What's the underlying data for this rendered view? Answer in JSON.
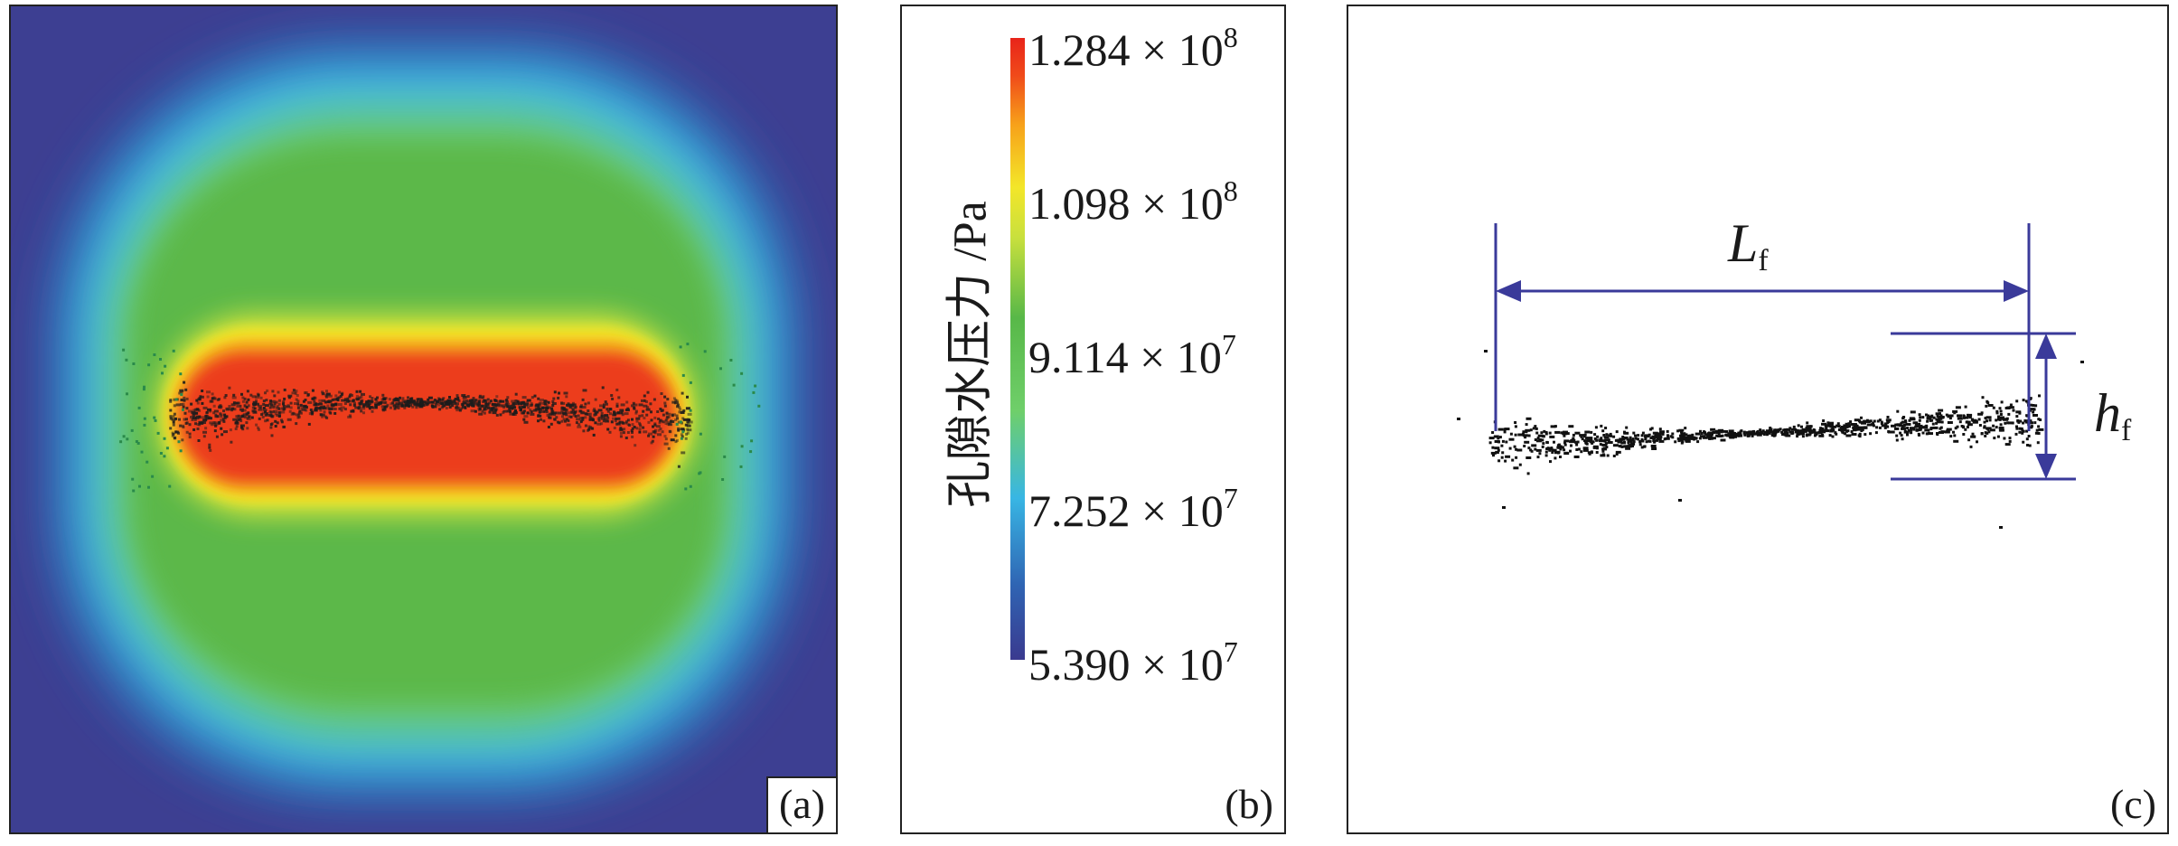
{
  "panels": {
    "a": {
      "tag": "(a)"
    },
    "b": {
      "tag": "(b)"
    },
    "c": {
      "tag": "(c)"
    }
  },
  "colorbar": {
    "title": "孔隙水压力 /Pa",
    "ticks": [
      {
        "mantissa": "1.284 × 10",
        "exponent": "8"
      },
      {
        "mantissa": "1.098 × 10",
        "exponent": "8"
      },
      {
        "mantissa": "9.114 × 10",
        "exponent": "7"
      },
      {
        "mantissa": "7.252 × 10",
        "exponent": "7"
      },
      {
        "mantissa": "5.390 × 10",
        "exponent": "7"
      }
    ],
    "colors": {
      "max": "#e8241a",
      "high": "#f3e629",
      "mid": "#58b848",
      "low": "#38b6e4",
      "min": "#3a3a8f"
    }
  },
  "dimension_labels": {
    "length": {
      "symbol": "L",
      "subscript": "f"
    },
    "height": {
      "symbol": "h",
      "subscript": "f"
    }
  },
  "colors": {
    "dimension_line": "#3a3a9a",
    "fracture": "#111111"
  }
}
